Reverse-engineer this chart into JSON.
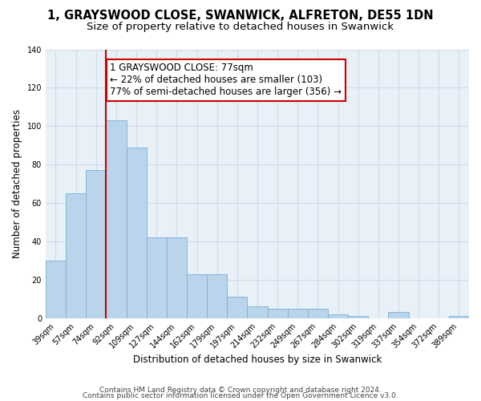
{
  "title_line1": "1, GRAYSWOOD CLOSE, SWANWICK, ALFRETON, DE55 1DN",
  "title_line2": "Size of property relative to detached houses in Swanwick",
  "xlabel": "Distribution of detached houses by size in Swanwick",
  "ylabel": "Number of detached properties",
  "bar_labels": [
    "39sqm",
    "57sqm",
    "74sqm",
    "92sqm",
    "109sqm",
    "127sqm",
    "144sqm",
    "162sqm",
    "179sqm",
    "197sqm",
    "214sqm",
    "232sqm",
    "249sqm",
    "267sqm",
    "284sqm",
    "302sqm",
    "319sqm",
    "337sqm",
    "354sqm",
    "372sqm",
    "389sqm"
  ],
  "bar_heights": [
    30,
    65,
    77,
    103,
    89,
    42,
    42,
    23,
    23,
    11,
    6,
    5,
    5,
    5,
    2,
    1,
    0,
    3,
    0,
    0,
    1
  ],
  "bar_color": "#bad4ec",
  "bar_edge_color": "#7bafd4",
  "grid_color": "#d0dce8",
  "red_line_x": 2.5,
  "red_line_color": "#cc0000",
  "annotation_box_text": "1 GRAYSWOOD CLOSE: 77sqm\n← 22% of detached houses are smaller (103)\n77% of semi-detached houses are larger (356) →",
  "annotation_box_facecolor": "#ffffff",
  "annotation_box_edgecolor": "#cc0000",
  "ylim": [
    0,
    140
  ],
  "yticks": [
    0,
    20,
    40,
    60,
    80,
    100,
    120,
    140
  ],
  "footnote_line1": "Contains HM Land Registry data © Crown copyright and database right 2024.",
  "footnote_line2": "Contains public sector information licensed under the Open Government Licence v3.0.",
  "background_color": "#ffffff",
  "title_fontsize": 10.5,
  "subtitle_fontsize": 9.5,
  "axis_label_fontsize": 8.5,
  "tick_fontsize": 7,
  "annotation_fontsize": 8.5,
  "footnote_fontsize": 6.5
}
